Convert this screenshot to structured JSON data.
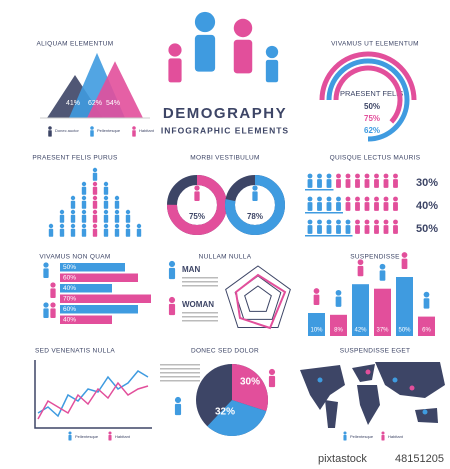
{
  "colors": {
    "blue": "#3f9be0",
    "pink": "#e24f9b",
    "dark": "#3d4566"
  },
  "header": {
    "title": "DEMOGRAPHY",
    "subtitle": "INFOGRAPHIC ELEMENTS"
  },
  "mountains": {
    "title": "ALIQUAM ELEMENTUM",
    "values": [
      41,
      62,
      54
    ],
    "value_labels": [
      "41%",
      "62%",
      "54%"
    ],
    "legend": [
      "Donec auctor",
      "Pellentesque",
      "Habitant"
    ]
  },
  "arcs": {
    "title": "VIVAMUS UT ELEMENTUM",
    "label": "PRAESENT FELIS",
    "values": [
      50,
      75,
      62
    ],
    "value_labels": [
      "50%",
      "75%",
      "62%"
    ]
  },
  "pyramid": {
    "title": "PRAESENT FELIS PURUS"
  },
  "donuts": {
    "title": "MORBI VESTIBULUM",
    "values": [
      75,
      78
    ],
    "value_labels": [
      "75%",
      "78%"
    ]
  },
  "people_rows": {
    "title": "QUISQUE LECTUS MAURIS",
    "values": [
      30,
      40,
      50
    ],
    "value_labels": [
      "30%",
      "40%",
      "50%"
    ]
  },
  "hbars": {
    "title": "VIVAMUS NON QUAM",
    "values": [
      50,
      60,
      40,
      70,
      60,
      40
    ],
    "value_labels": [
      "50%",
      "60%",
      "40%",
      "70%",
      "60%",
      "40%"
    ]
  },
  "gender": {
    "title": "NULLAM NULLA",
    "man": "MAN",
    "woman": "WOMAN"
  },
  "vbars": {
    "title": "SUSPENDISSE",
    "values": [
      10,
      8,
      42,
      37,
      50,
      6
    ],
    "value_labels": [
      "10%",
      "8%",
      "42%",
      "37%",
      "50%",
      "6%"
    ]
  },
  "lines": {
    "title": "SED VENENATIS NULLA",
    "series": [
      {
        "name": "Pellentesque",
        "values": [
          2,
          3,
          1.5,
          5,
          4,
          6,
          5.5,
          8,
          6,
          7,
          9,
          8
        ]
      },
      {
        "name": "Habitant",
        "values": [
          1,
          4,
          3,
          2,
          5,
          3.5,
          6,
          4.5,
          7,
          5,
          6,
          6.5
        ]
      }
    ],
    "ylim": [
      0,
      10
    ]
  },
  "pie": {
    "title": "DONEC SED DOLOR",
    "values": [
      30,
      32
    ],
    "value_labels": [
      "30%",
      "32%"
    ]
  },
  "map": {
    "title": "SUSPENDISSE EGET",
    "legend": [
      "Pellentesque",
      "Habitant"
    ]
  },
  "footer": {
    "brand": "pixtastock",
    "id": "48151205"
  }
}
